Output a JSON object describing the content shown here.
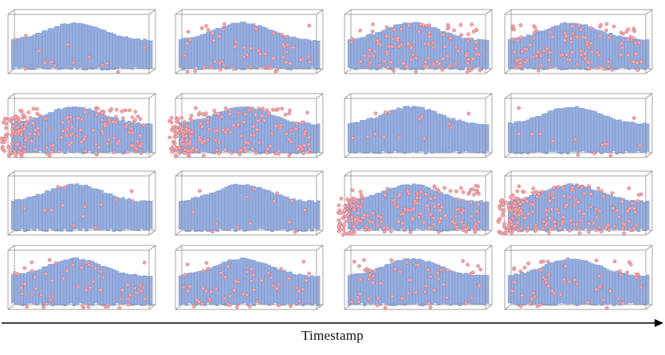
{
  "figure": {
    "axis_label": "Timestamp",
    "colors": {
      "voxel": "#8fa7dc",
      "voxel_edge": "#6f88c2",
      "point": "#f2a5ab",
      "point_edge": "#c96a74",
      "box": "#8f8f8f",
      "arrow": "#000000"
    },
    "panels": [
      {
        "row": 1,
        "col": 1,
        "point_density": "sparse"
      },
      {
        "row": 1,
        "col": 2,
        "point_density": "medium"
      },
      {
        "row": 1,
        "col": 3,
        "point_density": "dense"
      },
      {
        "row": 1,
        "col": 4,
        "point_density": "dense"
      },
      {
        "row": 2,
        "col": 1,
        "point_density": "very-dense"
      },
      {
        "row": 2,
        "col": 2,
        "point_density": "very-dense"
      },
      {
        "row": 2,
        "col": 3,
        "point_density": "sparse"
      },
      {
        "row": 2,
        "col": 4,
        "point_density": "sparse"
      },
      {
        "row": 3,
        "col": 1,
        "point_density": "sparse"
      },
      {
        "row": 3,
        "col": 2,
        "point_density": "sparse"
      },
      {
        "row": 3,
        "col": 3,
        "point_density": "very-dense"
      },
      {
        "row": 3,
        "col": 4,
        "point_density": "very-dense"
      },
      {
        "row": 4,
        "col": 1,
        "point_density": "medium"
      },
      {
        "row": 4,
        "col": 2,
        "point_density": "medium"
      },
      {
        "row": 4,
        "col": 3,
        "point_density": "medium"
      },
      {
        "row": 4,
        "col": 4,
        "point_density": "medium"
      }
    ]
  }
}
